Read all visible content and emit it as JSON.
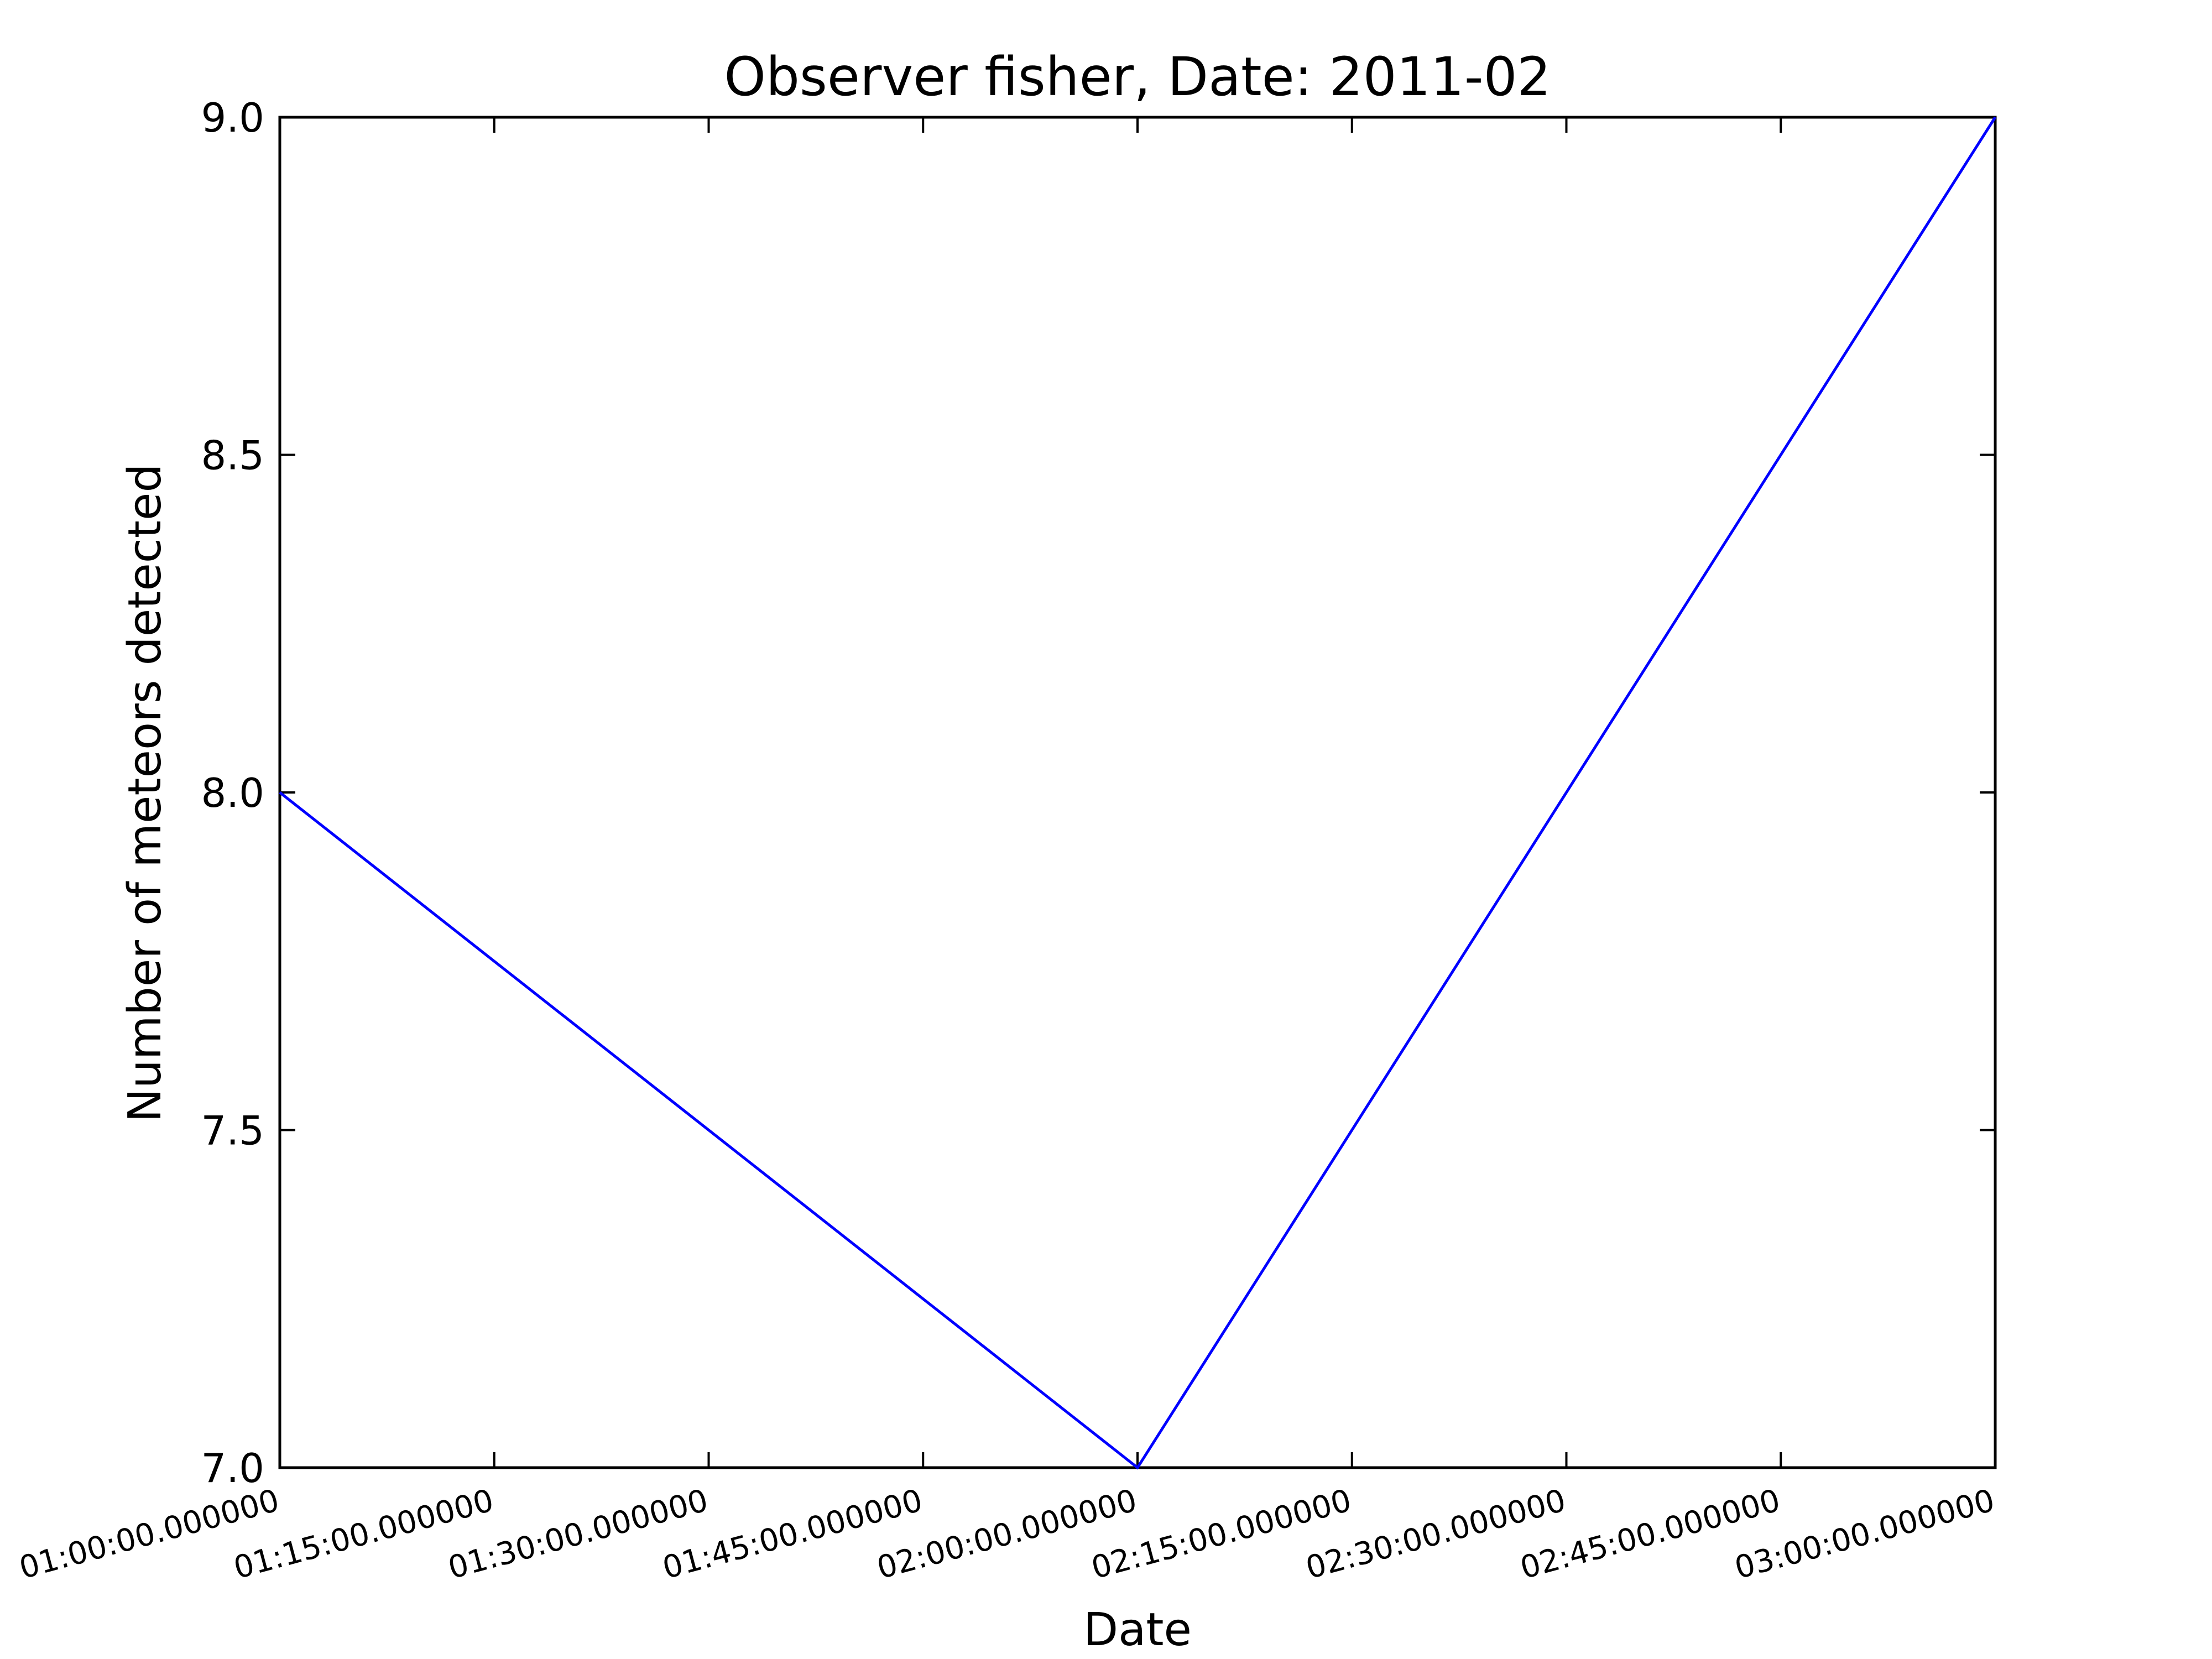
{
  "chart_data": {
    "type": "line",
    "title": "Observer fisher, Date: 2011-02",
    "xlabel": "Date",
    "ylabel": "Number of meteors detected",
    "x_tick_labels": [
      "01:00:00.000000",
      "01:15:00.000000",
      "01:30:00.000000",
      "01:45:00.000000",
      "02:00:00.000000",
      "02:15:00.000000",
      "02:30:00.000000",
      "02:45:00.000000",
      "03:00:00.000000"
    ],
    "x_tick_values": [
      "01:00",
      "01:15",
      "01:30",
      "01:45",
      "02:00",
      "02:15",
      "02:30",
      "02:45",
      "03:00"
    ],
    "y_tick_labels": [
      "7.0",
      "7.5",
      "8.0",
      "8.5",
      "9.0"
    ],
    "y_tick_values": [
      7.0,
      7.5,
      8.0,
      8.5,
      9.0
    ],
    "xlim": [
      "01:00",
      "03:00"
    ],
    "ylim": [
      7.0,
      9.0
    ],
    "grid": false,
    "legend": "none",
    "series": [
      {
        "x": [
          "01:00",
          "02:00",
          "03:00"
        ],
        "y": [
          8,
          7,
          9
        ],
        "color": "#0000ff"
      }
    ]
  }
}
